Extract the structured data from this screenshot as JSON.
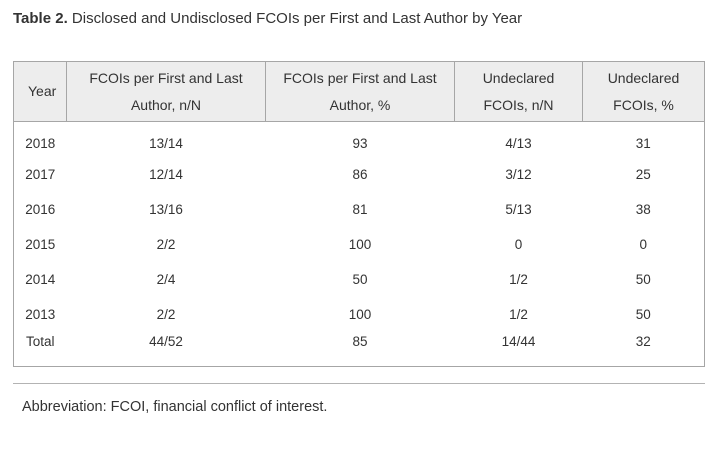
{
  "title": {
    "label": "Table 2.",
    "text": "Disclosed and Undisclosed FCOIs per First and Last Author by Year"
  },
  "table": {
    "columns": [
      "Year",
      "FCOIs per First and Last Author, n/N",
      "FCOIs per First and Last Author, %",
      "Undeclared FCOIs, n/N",
      "Undeclared FCOIs, %"
    ],
    "rows": [
      [
        "2018",
        "13/14",
        "93",
        "4/13",
        "31"
      ],
      [
        "2017",
        "12/14",
        "86",
        "3/12",
        "25"
      ],
      [
        "2016",
        "13/16",
        "81",
        "5/13",
        "38"
      ],
      [
        "2015",
        "2/2",
        "100",
        "0",
        "0"
      ],
      [
        "2014",
        "2/4",
        "50",
        "1/2",
        "50"
      ],
      [
        "2013",
        "2/2",
        "100",
        "1/2",
        "50"
      ],
      [
        "Total",
        "44/52",
        "85",
        "14/44",
        "32"
      ]
    ]
  },
  "footnote": "Abbreviation: FCOI, financial conflict of interest.",
  "colors": {
    "header_bg": "#ededed",
    "table_border": "#a6a6a6",
    "text": "#333333",
    "divider": "#b3b3b3",
    "background": "#ffffff"
  },
  "chart_data": {
    "type": "table",
    "title": "Table 2. Disclosed and Undisclosed FCOIs per First and Last Author by Year",
    "columns": [
      "Year",
      "FCOIs per First and Last Author, n/N",
      "FCOIs per First and Last Author, %",
      "Undeclared FCOIs, n/N",
      "Undeclared FCOIs, %"
    ],
    "rows": [
      [
        "2018",
        "13/14",
        93,
        "4/13",
        31
      ],
      [
        "2017",
        "12/14",
        86,
        "3/12",
        25
      ],
      [
        "2016",
        "13/16",
        81,
        "5/13",
        38
      ],
      [
        "2015",
        "2/2",
        100,
        "0",
        0
      ],
      [
        "2014",
        "2/4",
        50,
        "1/2",
        50
      ],
      [
        "2013",
        "2/2",
        100,
        "1/2",
        50
      ],
      [
        "Total",
        "44/52",
        85,
        "14/44",
        32
      ]
    ],
    "footnote": "Abbreviation: FCOI, financial conflict of interest."
  }
}
